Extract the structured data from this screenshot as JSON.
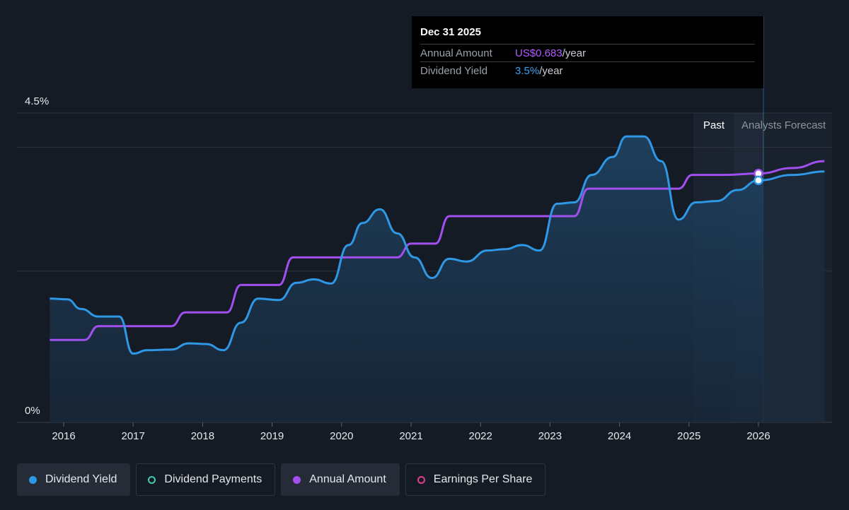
{
  "chart_data": {
    "type": "line",
    "y_top_label": "4.5%",
    "y_bottom_label": "0%",
    "ylim": [
      0,
      4.5
    ],
    "x_ticks": [
      "2016",
      "2017",
      "2018",
      "2019",
      "2020",
      "2021",
      "2022",
      "2023",
      "2024",
      "2025",
      "2026"
    ],
    "region_labels": {
      "past": "Past",
      "forecast": "Analysts Forecast"
    },
    "series": [
      {
        "name": "Dividend Yield",
        "color": "#2f98e6",
        "x": [
          2015.8,
          2016.05,
          2016.25,
          2016.5,
          2016.8,
          2017.0,
          2017.2,
          2017.55,
          2017.8,
          2018.05,
          2018.3,
          2018.55,
          2018.8,
          2019.1,
          2019.35,
          2019.6,
          2019.85,
          2020.1,
          2020.3,
          2020.55,
          2020.8,
          2021.05,
          2021.3,
          2021.55,
          2021.8,
          2022.1,
          2022.35,
          2022.6,
          2022.85,
          2023.1,
          2023.35,
          2023.6,
          2023.9,
          2024.1,
          2024.35,
          2024.6,
          2024.85,
          2025.1,
          2025.4,
          2025.7,
          2026.0,
          2026.5,
          2026.95
        ],
        "values": [
          1.8,
          1.79,
          1.65,
          1.54,
          1.54,
          1.0,
          1.05,
          1.06,
          1.15,
          1.14,
          1.05,
          1.45,
          1.8,
          1.78,
          2.03,
          2.08,
          2.02,
          2.58,
          2.9,
          3.1,
          2.75,
          2.4,
          2.1,
          2.38,
          2.34,
          2.5,
          2.52,
          2.58,
          2.5,
          3.18,
          3.2,
          3.6,
          3.86,
          4.16,
          4.16,
          3.8,
          2.95,
          3.2,
          3.22,
          3.38,
          3.52,
          3.6,
          3.65
        ]
      },
      {
        "name": "Annual Amount",
        "color": "#a24ff0",
        "x": [
          2015.8,
          2016.3,
          2016.5,
          2016.55,
          2017.55,
          2017.75,
          2017.8,
          2018.35,
          2018.55,
          2018.6,
          2019.1,
          2019.3,
          2019.35,
          2020.8,
          2021.0,
          2021.05,
          2021.35,
          2021.55,
          2021.6,
          2023.35,
          2023.55,
          2023.6,
          2024.85,
          2025.05,
          2025.1,
          2025.5,
          2026.0,
          2026.5,
          2026.95
        ],
        "values": [
          1.2,
          1.2,
          1.4,
          1.4,
          1.4,
          1.6,
          1.6,
          1.6,
          2.0,
          2.0,
          2.0,
          2.4,
          2.4,
          2.4,
          2.6,
          2.6,
          2.6,
          3.0,
          3.0,
          3.0,
          3.4,
          3.4,
          3.4,
          3.6,
          3.6,
          3.6,
          3.62,
          3.7,
          3.8
        ]
      }
    ],
    "tooltip": {
      "date": "Dec 31 2025",
      "rows": [
        {
          "label": "Annual Amount",
          "value": "US$0.683",
          "unit": "/year"
        },
        {
          "label": "Dividend Yield",
          "value": "3.5%",
          "unit": "/year"
        }
      ]
    },
    "legend": [
      {
        "label": "Dividend Yield",
        "color": "#2f98e6",
        "active": true,
        "filled": true
      },
      {
        "label": "Dividend Payments",
        "color": "#3fc9b0",
        "active": false,
        "filled": false
      },
      {
        "label": "Annual Amount",
        "color": "#a24ff0",
        "active": true,
        "filled": true
      },
      {
        "label": "Earnings Per Share",
        "color": "#e0418f",
        "active": false,
        "filled": false
      }
    ]
  }
}
